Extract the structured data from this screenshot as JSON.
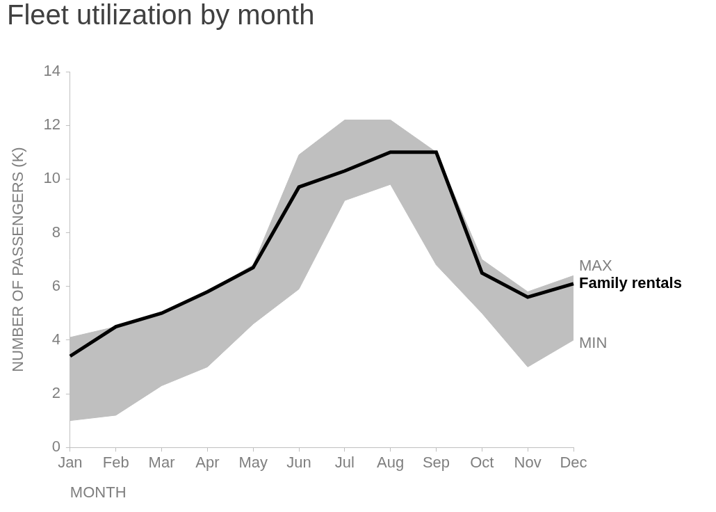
{
  "chart_data": {
    "type": "line",
    "title": "Fleet utilization by month",
    "x_label": "MONTH",
    "y_label": "NUMBER OF PASSENGERS (K)",
    "categories": [
      "Jan",
      "Feb",
      "Mar",
      "Apr",
      "May",
      "Jun",
      "Jul",
      "Aug",
      "Sep",
      "Oct",
      "Nov",
      "Dec"
    ],
    "series": [
      {
        "name": "MAX",
        "type": "area",
        "color": "#bfbfbf",
        "values": [
          4.1,
          4.5,
          5.0,
          5.8,
          6.8,
          10.9,
          12.2,
          12.2,
          11.0,
          7.0,
          5.8,
          6.4
        ]
      },
      {
        "name": "MIN",
        "type": "area",
        "color": "#bfbfbf",
        "values": [
          1.0,
          1.2,
          2.3,
          3.0,
          4.6,
          5.9,
          9.2,
          9.8,
          6.8,
          5.0,
          3.0,
          4.0
        ]
      },
      {
        "name": "Family rentals",
        "type": "line",
        "color": "#000000",
        "values": [
          3.4,
          4.5,
          5.0,
          5.8,
          6.7,
          9.7,
          10.3,
          11.0,
          11.0,
          6.5,
          5.6,
          6.1
        ]
      }
    ],
    "ylim": [
      0,
      14
    ],
    "yticks": [
      0,
      2,
      4,
      6,
      8,
      10,
      12,
      14
    ],
    "grid": false
  }
}
